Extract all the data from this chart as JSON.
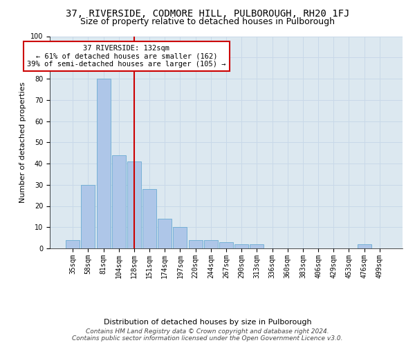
{
  "title": "37, RIVERSIDE, CODMORE HILL, PULBOROUGH, RH20 1FJ",
  "subtitle": "Size of property relative to detached houses in Pulborough",
  "xlabel": "Distribution of detached houses by size in Pulborough",
  "ylabel": "Number of detached properties",
  "categories": [
    "35sqm",
    "58sqm",
    "81sqm",
    "104sqm",
    "128sqm",
    "151sqm",
    "174sqm",
    "197sqm",
    "220sqm",
    "244sqm",
    "267sqm",
    "290sqm",
    "313sqm",
    "336sqm",
    "360sqm",
    "383sqm",
    "406sqm",
    "429sqm",
    "453sqm",
    "476sqm",
    "499sqm"
  ],
  "values": [
    4,
    30,
    80,
    44,
    41,
    28,
    14,
    10,
    4,
    4,
    3,
    2,
    2,
    0,
    0,
    0,
    0,
    0,
    0,
    2,
    0
  ],
  "bar_color": "#aec6e8",
  "bar_edgecolor": "#6aabd2",
  "marker_bin_index": 4,
  "marker_color": "#cc0000",
  "annotation_title": "37 RIVERSIDE: 132sqm",
  "annotation_line1": "← 61% of detached houses are smaller (162)",
  "annotation_line2": "39% of semi-detached houses are larger (105) →",
  "annotation_box_color": "#cc0000",
  "ylim": [
    0,
    100
  ],
  "yticks": [
    0,
    10,
    20,
    30,
    40,
    50,
    60,
    70,
    80,
    90,
    100
  ],
  "grid_color": "#c8d8e8",
  "background_color": "#dce8f0",
  "footer_line1": "Contains HM Land Registry data © Crown copyright and database right 2024.",
  "footer_line2": "Contains public sector information licensed under the Open Government Licence v3.0.",
  "title_fontsize": 10,
  "subtitle_fontsize": 9,
  "axis_label_fontsize": 8,
  "tick_fontsize": 7,
  "annotation_fontsize": 7.5,
  "footer_fontsize": 6.5
}
